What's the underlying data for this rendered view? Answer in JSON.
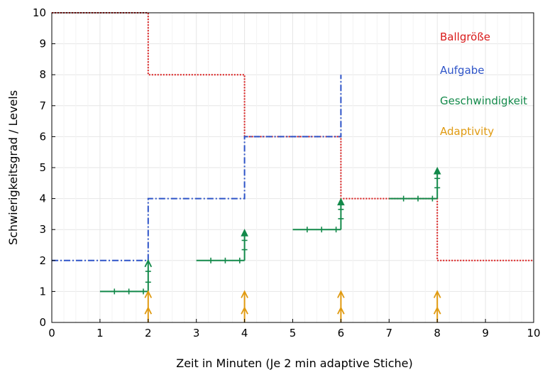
{
  "chart_data": {
    "type": "line",
    "title": "",
    "xlabel": "Zeit in Minuten (Je 2 min adaptive Stiche)",
    "ylabel": "Schwierigkeitsgrad / Levels",
    "xlim": [
      0,
      10
    ],
    "ylim": [
      0,
      10
    ],
    "x_ticks": [
      "0",
      "1",
      "2",
      "3",
      "4",
      "5",
      "6",
      "7",
      "8",
      "9",
      "10"
    ],
    "y_ticks": [
      "0",
      "1",
      "2",
      "3",
      "4",
      "5",
      "6",
      "7",
      "8",
      "9",
      "10"
    ],
    "grid": true,
    "legend_position": "top-right",
    "series": [
      {
        "name": "Ballgröße",
        "color": "#d91a1a",
        "style": "dotted",
        "x": [
          0,
          2,
          2,
          4,
          4,
          6,
          6,
          8,
          8,
          10
        ],
        "y": [
          10,
          10,
          8,
          8,
          6,
          6,
          4,
          4,
          2,
          2
        ]
      },
      {
        "name": "Aufgabe",
        "color": "#2e54c8",
        "style": "dashdot",
        "x": [
          0,
          2,
          2,
          4,
          4,
          6,
          6
        ],
        "y": [
          2,
          2,
          4,
          4,
          6,
          6,
          8
        ]
      },
      {
        "name": "Geschwindigkeit",
        "color": "#13894a",
        "style": "solid-stepped",
        "segments": [
          {
            "x_start": 1,
            "x_end": 2,
            "y": 1,
            "y_top": 2,
            "ticks_x": [
              1.3,
              1.6,
              1.9
            ],
            "ticks_y": [
              1.3,
              1.65
            ]
          },
          {
            "x_start": 3,
            "x_end": 4,
            "y": 2,
            "y_top": 3,
            "ticks_x": [
              3.3,
              3.6,
              3.9
            ],
            "ticks_y": [
              2.35,
              2.65
            ]
          },
          {
            "x_start": 5,
            "x_end": 6,
            "y": 3,
            "y_top": 4,
            "ticks_x": [
              5.3,
              5.6,
              5.9
            ],
            "ticks_y": [
              3.35,
              3.65
            ]
          },
          {
            "x_start": 7,
            "x_end": 8,
            "y": 4,
            "y_top": 5,
            "ticks_x": [
              7.3,
              7.6,
              7.9
            ],
            "ticks_y": [
              4.35,
              4.65
            ]
          }
        ]
      },
      {
        "name": "Adaptivity",
        "color": "#e09a10",
        "style": "arrows",
        "x": [
          2,
          4,
          6,
          8
        ],
        "y_from": 0,
        "y_to": 1
      }
    ]
  }
}
